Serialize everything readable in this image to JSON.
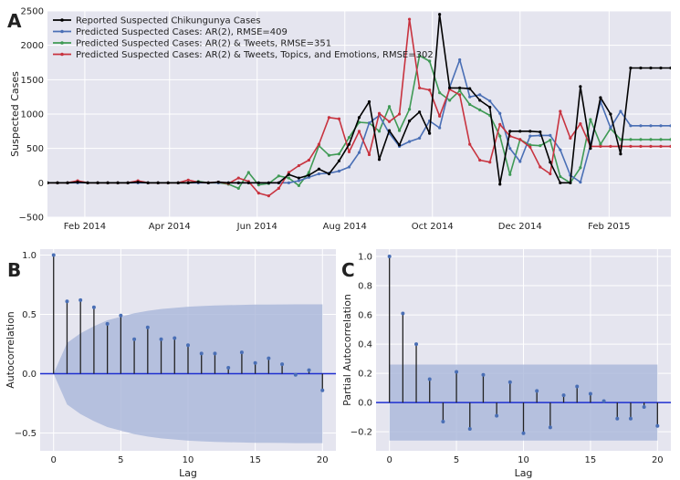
{
  "panels": {
    "a_letter": "A",
    "b_letter": "B",
    "c_letter": "C"
  },
  "colors": {
    "background": "#e5e5ef",
    "grid": "#ffffff",
    "reported": "#000000",
    "ar2": "#4a6fb5",
    "ar2_tweets": "#3f9a55",
    "ar2_full": "#c8333f",
    "band": "#a9b7da",
    "zero_line": "#1f2fd0",
    "stem": "#222222",
    "marker": "#4a6fb5"
  },
  "chart_data": [
    {
      "type": "line",
      "panel": "A",
      "ylabel": "Suspected Cases",
      "xlabel": "",
      "ylim": [
        -500,
        2500
      ],
      "yticks": [
        -500,
        0,
        500,
        1000,
        1500,
        2000,
        2500
      ],
      "x_axis_type": "date",
      "xlim": [
        "2014-01-06",
        "2015-03-16"
      ],
      "xtick_dates": [
        "2014-02-01",
        "2014-04-01",
        "2014-06-01",
        "2014-08-01",
        "2014-10-01",
        "2014-12-01",
        "2015-02-01"
      ],
      "xtick_labels": [
        "Feb 2014",
        "Apr 2014",
        "Jun 2014",
        "Aug 2014",
        "Oct 2014",
        "Dec 2014",
        "Feb 2015"
      ],
      "x": [
        "2014-01-06",
        "2014-01-13",
        "2014-01-20",
        "2014-01-27",
        "2014-02-03",
        "2014-02-10",
        "2014-02-17",
        "2014-02-24",
        "2014-03-03",
        "2014-03-10",
        "2014-03-17",
        "2014-03-24",
        "2014-03-31",
        "2014-04-07",
        "2014-04-14",
        "2014-04-21",
        "2014-04-28",
        "2014-05-05",
        "2014-05-12",
        "2014-05-19",
        "2014-05-26",
        "2014-06-02",
        "2014-06-09",
        "2014-06-16",
        "2014-06-23",
        "2014-06-30",
        "2014-07-07",
        "2014-07-14",
        "2014-07-21",
        "2014-07-28",
        "2014-08-04",
        "2014-08-11",
        "2014-08-18",
        "2014-08-25",
        "2014-09-01",
        "2014-09-08",
        "2014-09-15",
        "2014-09-22",
        "2014-09-29",
        "2014-10-06",
        "2014-10-13",
        "2014-10-20",
        "2014-10-27",
        "2014-11-03",
        "2014-11-10",
        "2014-11-17",
        "2014-11-24",
        "2014-12-01",
        "2014-12-08",
        "2014-12-15",
        "2014-12-22",
        "2014-12-29",
        "2015-01-05",
        "2015-01-12",
        "2015-01-19",
        "2015-01-26",
        "2015-02-02",
        "2015-02-09",
        "2015-02-16",
        "2015-02-23",
        "2015-03-02",
        "2015-03-09",
        "2015-03-16"
      ],
      "legend_position": "top-left",
      "series": [
        {
          "name": "Reported Suspected Chikungunya Cases",
          "color_key": "reported",
          "values": [
            0,
            0,
            0,
            10,
            0,
            0,
            0,
            0,
            0,
            10,
            0,
            0,
            0,
            0,
            0,
            10,
            0,
            10,
            0,
            0,
            0,
            0,
            0,
            0,
            120,
            70,
            110,
            200,
            130,
            320,
            560,
            950,
            1180,
            340,
            760,
            550,
            900,
            1030,
            720,
            2450,
            1380,
            1380,
            1370,
            1200,
            1100,
            -20,
            750,
            750,
            750,
            740,
            300,
            0,
            0,
            1400,
            500,
            1240,
            1000,
            420,
            1670,
            1670,
            1670,
            1670,
            1670
          ]
        },
        {
          "name": "Predicted Suspected Cases: AR(2), RMSE=409",
          "color_key": "ar2",
          "values": [
            0,
            0,
            0,
            0,
            0,
            0,
            0,
            0,
            0,
            0,
            0,
            0,
            0,
            0,
            0,
            0,
            0,
            0,
            0,
            0,
            0,
            0,
            0,
            0,
            0,
            30,
            80,
            130,
            140,
            170,
            230,
            440,
            870,
            980,
            720,
            530,
            600,
            650,
            900,
            800,
            1390,
            1790,
            1250,
            1280,
            1190,
            1010,
            500,
            310,
            680,
            690,
            690,
            480,
            110,
            10,
            550,
            1180,
            800,
            1040,
            830,
            830,
            830,
            830,
            830
          ]
        },
        {
          "name": "Predicted Suspected Cases: AR(2) & Tweets, RMSE=351",
          "color_key": "ar2_tweets",
          "values": [
            0,
            0,
            0,
            10,
            0,
            0,
            0,
            0,
            0,
            20,
            0,
            0,
            0,
            0,
            0,
            20,
            0,
            0,
            -20,
            -80,
            150,
            -30,
            -10,
            100,
            70,
            -40,
            150,
            540,
            400,
            420,
            660,
            880,
            870,
            750,
            1110,
            760,
            1070,
            1850,
            1770,
            1310,
            1200,
            1340,
            1140,
            1060,
            980,
            680,
            120,
            630,
            550,
            540,
            620,
            90,
            0,
            220,
            920,
            560,
            790,
            630,
            630,
            630,
            630,
            630,
            630
          ]
        },
        {
          "name": "Predicted Suspected Cases: AR(2) & Tweets, Topics, and Emotions, RMSE=302",
          "color_key": "ar2_full",
          "values": [
            0,
            0,
            0,
            30,
            0,
            0,
            0,
            0,
            0,
            30,
            0,
            0,
            0,
            0,
            40,
            10,
            0,
            10,
            -10,
            70,
            20,
            -150,
            -190,
            -80,
            150,
            250,
            330,
            560,
            950,
            930,
            450,
            750,
            410,
            1010,
            890,
            1000,
            2380,
            1380,
            1350,
            970,
            1360,
            1280,
            560,
            330,
            300,
            850,
            680,
            630,
            520,
            230,
            130,
            1040,
            650,
            860,
            530,
            530,
            530,
            530,
            530,
            530,
            530,
            530,
            530
          ]
        }
      ]
    },
    {
      "type": "stem",
      "panel": "B",
      "xlabel": "Lag",
      "ylabel": "Autocorrelation",
      "xlim": [
        -1,
        21
      ],
      "ylim": [
        -0.65,
        1.05
      ],
      "xticks": [
        0,
        5,
        10,
        15,
        20
      ],
      "yticks": [
        -0.5,
        0.0,
        0.5,
        1.0
      ],
      "ytick_labels": [
        "−0.5",
        "0.0",
        "0.5",
        "1.0"
      ],
      "lags": [
        0,
        1,
        2,
        3,
        4,
        5,
        6,
        7,
        8,
        9,
        10,
        11,
        12,
        13,
        14,
        15,
        16,
        17,
        18,
        19,
        20
      ],
      "values": [
        1.0,
        0.61,
        0.62,
        0.56,
        0.42,
        0.49,
        0.29,
        0.39,
        0.29,
        0.3,
        0.24,
        0.17,
        0.17,
        0.05,
        0.18,
        0.09,
        0.13,
        0.08,
        -0.01,
        0.03,
        -0.14
      ],
      "confidence_band": [
        0,
        0.26,
        0.34,
        0.4,
        0.45,
        0.48,
        0.51,
        0.53,
        0.545,
        0.555,
        0.565,
        0.57,
        0.575,
        0.578,
        0.58,
        0.582,
        0.583,
        0.584,
        0.585,
        0.585,
        0.585
      ]
    },
    {
      "type": "stem",
      "panel": "C",
      "xlabel": "Lag",
      "ylabel": "Partial Autocorrelation",
      "xlim": [
        -1,
        21
      ],
      "ylim": [
        -0.33,
        1.05
      ],
      "xticks": [
        0,
        5,
        10,
        15,
        20
      ],
      "yticks": [
        -0.2,
        0.0,
        0.2,
        0.4,
        0.6,
        0.8,
        1.0
      ],
      "ytick_labels": [
        "−0.2",
        "0.0",
        "0.2",
        "0.4",
        "0.6",
        "0.8",
        "1.0"
      ],
      "lags": [
        0,
        1,
        2,
        3,
        4,
        5,
        6,
        7,
        8,
        9,
        10,
        11,
        12,
        13,
        14,
        15,
        16,
        17,
        18,
        19,
        20
      ],
      "values": [
        1.0,
        0.61,
        0.4,
        0.16,
        -0.13,
        0.21,
        -0.18,
        0.19,
        -0.09,
        0.14,
        -0.21,
        0.08,
        -0.17,
        0.05,
        0.11,
        0.06,
        0.01,
        -0.11,
        -0.11,
        -0.03,
        -0.16
      ],
      "confidence_band_half_width": 0.26
    }
  ]
}
